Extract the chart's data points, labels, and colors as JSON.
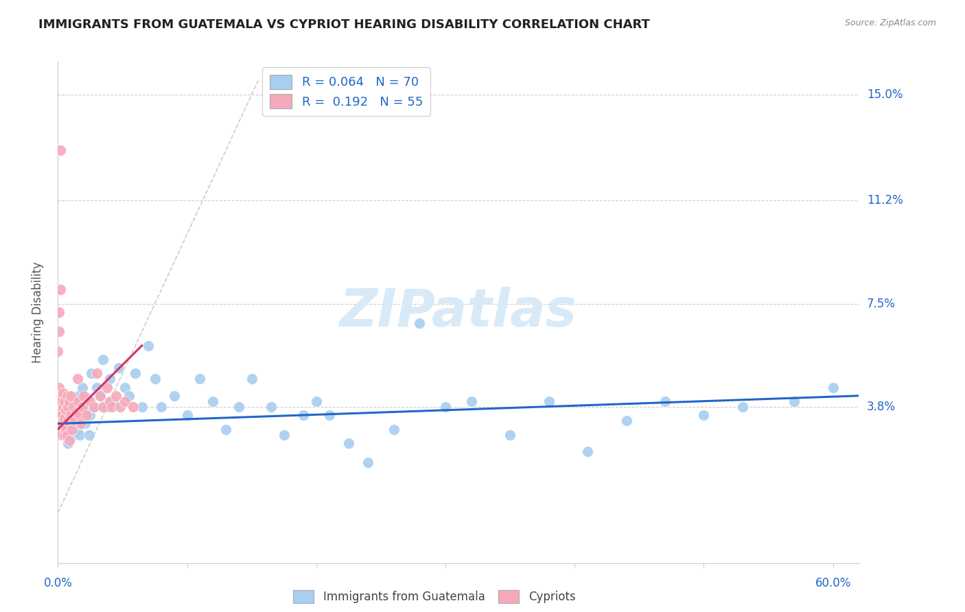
{
  "title": "IMMIGRANTS FROM GUATEMALA VS CYPRIOT HEARING DISABILITY CORRELATION CHART",
  "source": "Source: ZipAtlas.com",
  "ylabel": "Hearing Disability",
  "legend_blue_r": "0.064",
  "legend_blue_n": "70",
  "legend_pink_r": "0.192",
  "legend_pink_n": "55",
  "blue_color": "#A8CEF0",
  "pink_color": "#F5AABB",
  "trend_blue_color": "#2166C8",
  "trend_pink_color": "#D63060",
  "grid_color": "#CCCCCC",
  "watermark_text": "ZIPatlas",
  "watermark_color": "#D8EAF8",
  "xlim": [
    0.0,
    0.62
  ],
  "ylim": [
    -0.018,
    0.162
  ],
  "ytick_vals": [
    0.0,
    0.038,
    0.075,
    0.112,
    0.15
  ],
  "ytick_labels": [
    "",
    "3.8%",
    "7.5%",
    "11.2%",
    "15.0%"
  ],
  "blue_scatter_x": [
    0.003,
    0.004,
    0.005,
    0.006,
    0.007,
    0.008,
    0.008,
    0.009,
    0.01,
    0.01,
    0.011,
    0.012,
    0.013,
    0.013,
    0.014,
    0.015,
    0.015,
    0.016,
    0.017,
    0.018,
    0.019,
    0.02,
    0.021,
    0.022,
    0.023,
    0.024,
    0.025,
    0.026,
    0.028,
    0.03,
    0.032,
    0.035,
    0.038,
    0.04,
    0.043,
    0.047,
    0.052,
    0.055,
    0.06,
    0.065,
    0.07,
    0.075,
    0.08,
    0.09,
    0.1,
    0.11,
    0.12,
    0.13,
    0.14,
    0.15,
    0.165,
    0.175,
    0.19,
    0.2,
    0.21,
    0.225,
    0.24,
    0.26,
    0.28,
    0.3,
    0.32,
    0.35,
    0.38,
    0.41,
    0.44,
    0.47,
    0.5,
    0.53,
    0.57,
    0.6
  ],
  "blue_scatter_y": [
    0.033,
    0.03,
    0.028,
    0.036,
    0.032,
    0.038,
    0.025,
    0.031,
    0.034,
    0.027,
    0.04,
    0.035,
    0.029,
    0.038,
    0.033,
    0.03,
    0.036,
    0.042,
    0.028,
    0.035,
    0.045,
    0.038,
    0.032,
    0.036,
    0.041,
    0.028,
    0.035,
    0.05,
    0.038,
    0.045,
    0.042,
    0.055,
    0.038,
    0.048,
    0.04,
    0.052,
    0.045,
    0.042,
    0.05,
    0.038,
    0.06,
    0.048,
    0.038,
    0.042,
    0.035,
    0.048,
    0.04,
    0.03,
    0.038,
    0.048,
    0.038,
    0.028,
    0.035,
    0.04,
    0.035,
    0.025,
    0.018,
    0.03,
    0.068,
    0.038,
    0.04,
    0.028,
    0.04,
    0.022,
    0.033,
    0.04,
    0.035,
    0.038,
    0.04,
    0.045
  ],
  "pink_scatter_x": [
    0.0,
    0.0,
    0.001,
    0.001,
    0.001,
    0.002,
    0.002,
    0.002,
    0.003,
    0.003,
    0.003,
    0.004,
    0.004,
    0.004,
    0.005,
    0.005,
    0.005,
    0.006,
    0.006,
    0.007,
    0.007,
    0.008,
    0.008,
    0.009,
    0.009,
    0.01,
    0.01,
    0.011,
    0.012,
    0.013,
    0.014,
    0.015,
    0.016,
    0.017,
    0.018,
    0.019,
    0.02,
    0.022,
    0.025,
    0.028,
    0.03,
    0.033,
    0.035,
    0.038,
    0.04,
    0.042,
    0.045,
    0.048,
    0.052,
    0.058,
    0.0,
    0.001,
    0.001,
    0.002,
    0.002
  ],
  "pink_scatter_y": [
    0.035,
    0.04,
    0.032,
    0.038,
    0.045,
    0.03,
    0.036,
    0.042,
    0.028,
    0.035,
    0.04,
    0.033,
    0.038,
    0.043,
    0.028,
    0.034,
    0.04,
    0.03,
    0.037,
    0.028,
    0.042,
    0.033,
    0.038,
    0.026,
    0.04,
    0.035,
    0.042,
    0.03,
    0.038,
    0.033,
    0.036,
    0.048,
    0.04,
    0.035,
    0.032,
    0.038,
    0.042,
    0.035,
    0.04,
    0.038,
    0.05,
    0.042,
    0.038,
    0.045,
    0.04,
    0.038,
    0.042,
    0.038,
    0.04,
    0.038,
    0.058,
    0.065,
    0.072,
    0.08,
    0.13
  ],
  "blue_trend_x": [
    0.0,
    0.62
  ],
  "blue_trend_y": [
    0.032,
    0.042
  ],
  "pink_trend_x": [
    0.0,
    0.065
  ],
  "pink_trend_y": [
    0.03,
    0.06
  ]
}
